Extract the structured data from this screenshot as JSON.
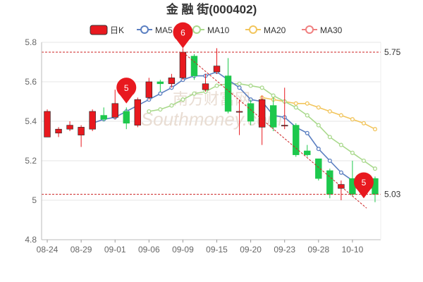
{
  "chart_data": {
    "type": "candlestick",
    "title": "金 融 街(000402)",
    "watermark": {
      "line1": "南方财富网",
      "line2": "Southmoney.com"
    },
    "ylim": [
      4.8,
      5.8
    ],
    "yticks": [
      "4.8",
      "5",
      "5.2",
      "5.4",
      "5.6",
      "5.8"
    ],
    "x_ticks": [
      {
        "label": "08-24",
        "idx": 0
      },
      {
        "label": "08-29",
        "idx": 3
      },
      {
        "label": "09-01",
        "idx": 6
      },
      {
        "label": "09-06",
        "idx": 9
      },
      {
        "label": "09-09",
        "idx": 12
      },
      {
        "label": "09-15",
        "idx": 15
      },
      {
        "label": "09-20",
        "idx": 18
      },
      {
        "label": "09-23",
        "idx": 21
      },
      {
        "label": "09-28",
        "idx": 24
      },
      {
        "label": "10-10",
        "idx": 27
      }
    ],
    "legend": [
      {
        "label": "日K",
        "color": "#e8191f"
      },
      {
        "label": "MA5",
        "color": "#5b7fc1"
      },
      {
        "label": "MA10",
        "color": "#a9d98c"
      },
      {
        "label": "MA20",
        "color": "#f2c55c"
      },
      {
        "label": "MA30",
        "color": "#f08080"
      }
    ],
    "colors": {
      "up": "#e8191f",
      "down": "#1dc84c",
      "ref_line": "#cc2222",
      "pin": "#e8191f",
      "grid": "#e6e6e6"
    },
    "candles": [
      {
        "o": 5.32,
        "c": 5.45,
        "h": 5.46,
        "l": 5.32
      },
      {
        "o": 5.34,
        "c": 5.36,
        "h": 5.37,
        "l": 5.32
      },
      {
        "o": 5.36,
        "c": 5.38,
        "h": 5.4,
        "l": 5.35
      },
      {
        "o": 5.33,
        "c": 5.37,
        "h": 5.38,
        "l": 5.27
      },
      {
        "o": 5.36,
        "c": 5.45,
        "h": 5.46,
        "l": 5.35
      },
      {
        "o": 5.43,
        "c": 5.41,
        "h": 5.47,
        "l": 5.4
      },
      {
        "o": 5.42,
        "c": 5.49,
        "h": 5.56,
        "l": 5.41
      },
      {
        "o": 5.45,
        "c": 5.39,
        "h": 5.47,
        "l": 5.36
      },
      {
        "o": 5.38,
        "c": 5.51,
        "h": 5.52,
        "l": 5.37
      },
      {
        "o": 5.52,
        "c": 5.6,
        "h": 5.62,
        "l": 5.51
      },
      {
        "o": 5.6,
        "c": 5.59,
        "h": 5.61,
        "l": 5.55
      },
      {
        "o": 5.59,
        "c": 5.62,
        "h": 5.64,
        "l": 5.57
      },
      {
        "o": 5.62,
        "c": 5.75,
        "h": 5.77,
        "l": 5.61
      },
      {
        "o": 5.73,
        "c": 5.63,
        "h": 5.74,
        "l": 5.61
      },
      {
        "o": 5.56,
        "c": 5.59,
        "h": 5.64,
        "l": 5.55
      },
      {
        "o": 5.65,
        "c": 5.68,
        "h": 5.77,
        "l": 5.64
      },
      {
        "o": 5.63,
        "c": 5.45,
        "h": 5.72,
        "l": 5.44
      },
      {
        "o": 5.45,
        "c": 5.45,
        "h": 5.51,
        "l": 5.33
      },
      {
        "o": 5.49,
        "c": 5.4,
        "h": 5.51,
        "l": 5.38
      },
      {
        "o": 5.37,
        "c": 5.51,
        "h": 5.53,
        "l": 5.28
      },
      {
        "o": 5.48,
        "c": 5.37,
        "h": 5.52,
        "l": 5.35
      },
      {
        "o": 5.38,
        "c": 5.38,
        "h": 5.57,
        "l": 5.36
      },
      {
        "o": 5.38,
        "c": 5.23,
        "h": 5.39,
        "l": 5.22
      },
      {
        "o": 5.25,
        "c": 5.23,
        "h": 5.28,
        "l": 5.22
      },
      {
        "o": 5.21,
        "c": 5.11,
        "h": 5.21,
        "l": 5.1
      },
      {
        "o": 5.15,
        "c": 5.03,
        "h": 5.16,
        "l": 5.01
      },
      {
        "o": 5.06,
        "c": 5.08,
        "h": 5.1,
        "l": 5.0
      },
      {
        "o": 5.11,
        "c": 5.03,
        "h": 5.2,
        "l": 5.02
      },
      {
        "o": 5.04,
        "c": 5.06,
        "h": 5.1,
        "l": 5.02
      },
      {
        "o": 5.11,
        "c": 5.03,
        "h": 5.12,
        "l": 4.99
      }
    ],
    "ma5": [
      null,
      null,
      null,
      null,
      5.39,
      5.41,
      5.42,
      5.45,
      5.48,
      5.51,
      5.54,
      5.57,
      5.61,
      5.63,
      5.63,
      5.65,
      5.61,
      5.57,
      5.51,
      5.5,
      5.43,
      5.42,
      5.37,
      5.34,
      5.26,
      5.2,
      5.14,
      5.1,
      5.07,
      5.06
    ],
    "ma10": [
      null,
      null,
      null,
      null,
      null,
      null,
      null,
      null,
      null,
      5.45,
      5.46,
      5.48,
      5.51,
      5.54,
      5.55,
      5.58,
      5.59,
      5.59,
      5.58,
      5.57,
      5.53,
      5.5,
      5.47,
      5.43,
      5.38,
      5.32,
      5.28,
      5.24,
      5.2,
      5.16
    ],
    "ma20": [
      null,
      null,
      null,
      null,
      null,
      null,
      null,
      null,
      null,
      null,
      null,
      null,
      null,
      null,
      null,
      null,
      null,
      null,
      null,
      5.52,
      5.51,
      5.5,
      5.49,
      5.49,
      5.47,
      5.45,
      5.43,
      5.41,
      5.39,
      5.36
    ],
    "ref_lines": [
      {
        "value": 5.75,
        "label": "5.75"
      },
      {
        "value": 5.03,
        "label": "5.03"
      }
    ],
    "pins": [
      {
        "idx": 7,
        "price": 5.49,
        "label": "5"
      },
      {
        "idx": 12,
        "price": 5.77,
        "label": "6"
      },
      {
        "idx": 28,
        "price": 5.01,
        "label": "5"
      }
    ]
  }
}
